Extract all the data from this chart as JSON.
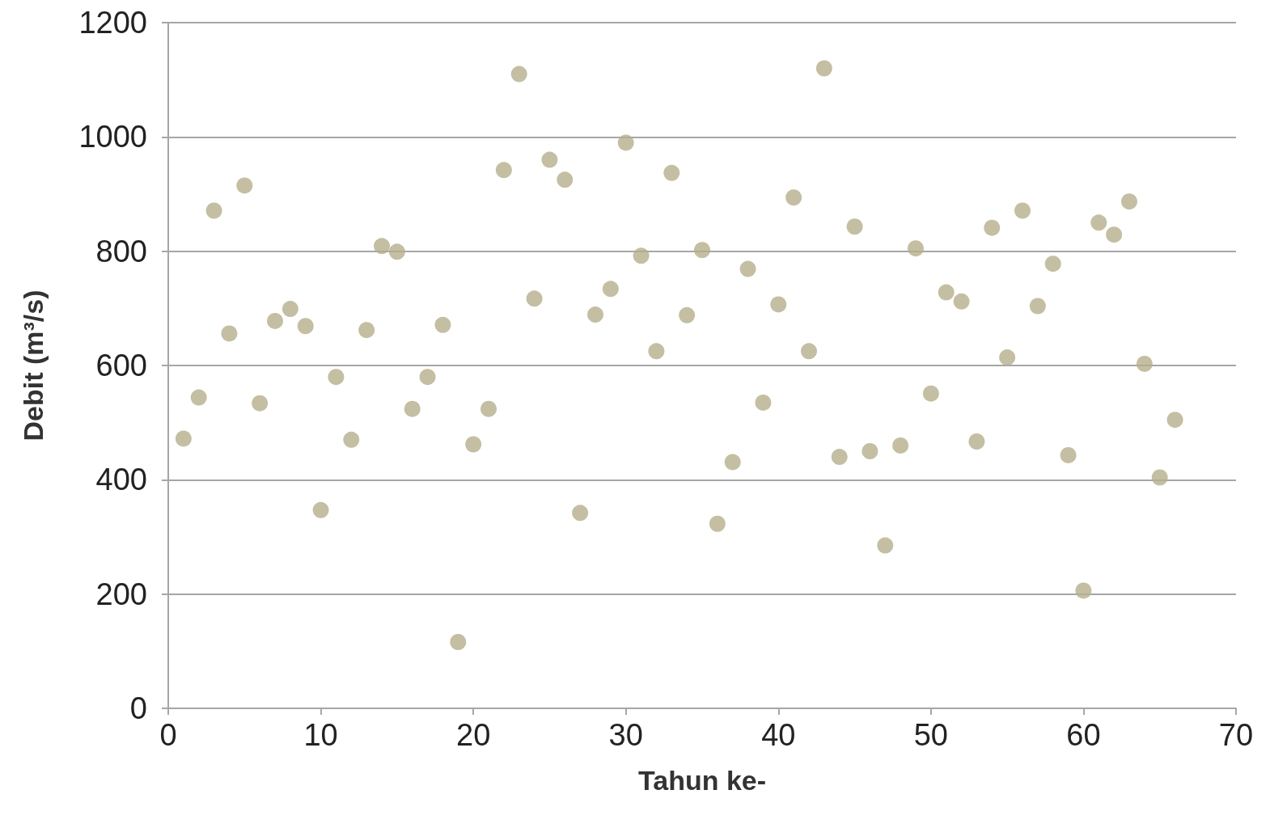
{
  "chart_data": {
    "type": "scatter",
    "xlabel": "Tahun ke-",
    "ylabel": "Debit (m³/s)",
    "x": [
      1,
      2,
      3,
      4,
      5,
      6,
      7,
      8,
      9,
      10,
      11,
      12,
      13,
      14,
      15,
      16,
      17,
      18,
      19,
      20,
      21,
      22,
      23,
      24,
      25,
      26,
      27,
      28,
      29,
      30,
      31,
      32,
      33,
      34,
      35,
      36,
      37,
      38,
      39,
      40,
      41,
      42,
      43,
      44,
      45,
      46,
      47,
      48,
      49,
      50,
      51,
      52,
      53,
      54,
      55,
      56,
      57,
      58,
      59,
      60,
      61,
      62,
      63,
      64,
      65,
      66
    ],
    "series": [
      {
        "color": "#b5ae8c",
        "values": [
          472,
          544,
          871,
          656,
          915,
          534,
          678,
          699,
          669,
          347,
          580,
          470,
          662,
          809,
          799,
          524,
          580,
          671,
          116,
          462,
          524,
          942,
          1110,
          717,
          960,
          925,
          342,
          689,
          734,
          990,
          792,
          625,
          937,
          688,
          802,
          323,
          431,
          769,
          535,
          707,
          894,
          625,
          1120,
          440,
          843,
          450,
          285,
          460,
          805,
          551,
          728,
          712,
          467,
          841,
          614,
          871,
          704,
          778,
          443,
          206,
          850,
          829,
          887,
          603,
          404,
          505
        ]
      }
    ],
    "xlim": [
      0,
      70
    ],
    "xticks": [
      0,
      10,
      20,
      30,
      40,
      50,
      60,
      70
    ],
    "ylim": [
      0,
      1200
    ],
    "yticks": [
      0,
      200,
      400,
      600,
      800,
      1000,
      1200
    ],
    "grid": "y",
    "marker": "circle"
  }
}
